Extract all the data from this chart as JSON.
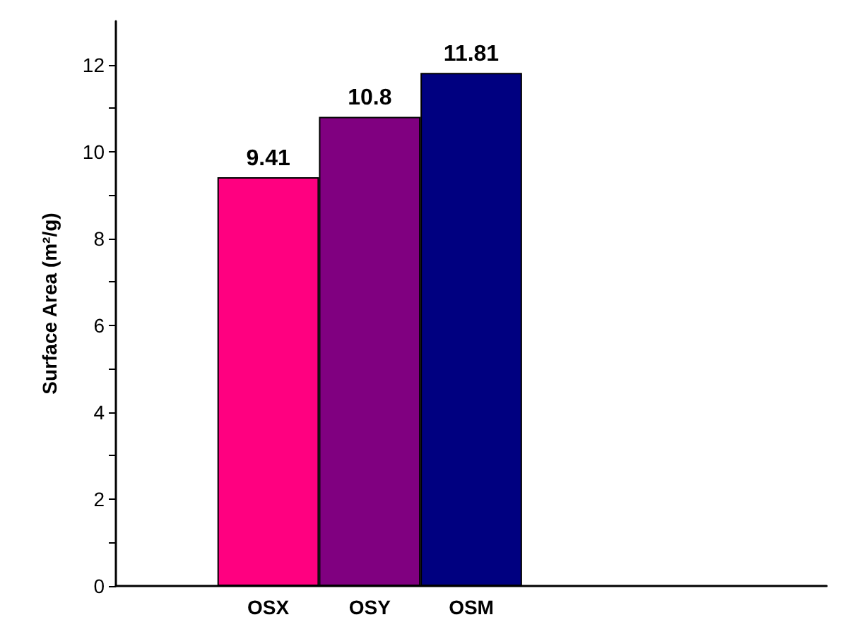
{
  "chart_data": {
    "type": "bar",
    "ylabel": "Surface Area (m²/g)",
    "categories": [
      null,
      "OSX",
      "OSY",
      "OSM",
      null,
      null,
      null
    ],
    "values": [
      null,
      9.41,
      10.8,
      11.81,
      null,
      null,
      null
    ],
    "colors": [
      null,
      "#ff0080",
      "#800080",
      "#000080",
      null,
      null,
      null
    ],
    "ylim": [
      0,
      13
    ],
    "yticks": [
      0,
      {
        "value": 1,
        "label": null
      },
      2,
      {
        "value": 3,
        "label": null
      },
      4,
      {
        "value": 5,
        "label": null
      },
      6,
      {
        "value": 7,
        "label": null
      },
      8,
      {
        "value": 9,
        "label": null
      },
      10,
      {
        "value": 11,
        "label": null
      },
      12
    ],
    "data_labels": true,
    "grid": false
  }
}
